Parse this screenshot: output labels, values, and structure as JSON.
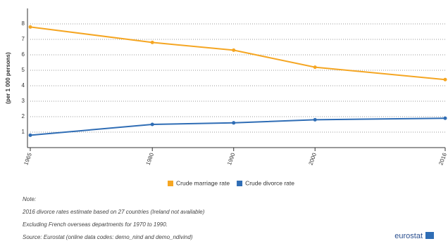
{
  "chart_data": {
    "type": "line",
    "y_label": "(per 1 000 persons)",
    "x": [
      1965,
      1980,
      1990,
      2000,
      2016
    ],
    "xlim": [
      1965,
      2016
    ],
    "xticks": [
      1965,
      1980,
      1990,
      2000,
      2016
    ],
    "ylim": [
      0,
      9
    ],
    "yticks": [
      1,
      2,
      3,
      4,
      5,
      6,
      7,
      8
    ],
    "grid": true,
    "legend": "bottom",
    "series": [
      {
        "name": "Crude marriage rate",
        "color": "#f5a623",
        "values": [
          7.8,
          6.8,
          6.3,
          5.2,
          4.4
        ]
      },
      {
        "name": "Crude divorce rate",
        "color": "#2f6db5",
        "values": [
          0.8,
          1.5,
          1.6,
          1.8,
          1.9
        ]
      }
    ]
  },
  "notes": {
    "heading": "Note:",
    "lines": [
      "2016 divorce rates estimate based on 27 countries (Ireland not available)",
      "Excluding French overseas departments for 1970 to 1990.",
      "Source: Eurostat (online data codes: demo_nind and demo_ndivind)"
    ]
  },
  "brand": "eurostat"
}
